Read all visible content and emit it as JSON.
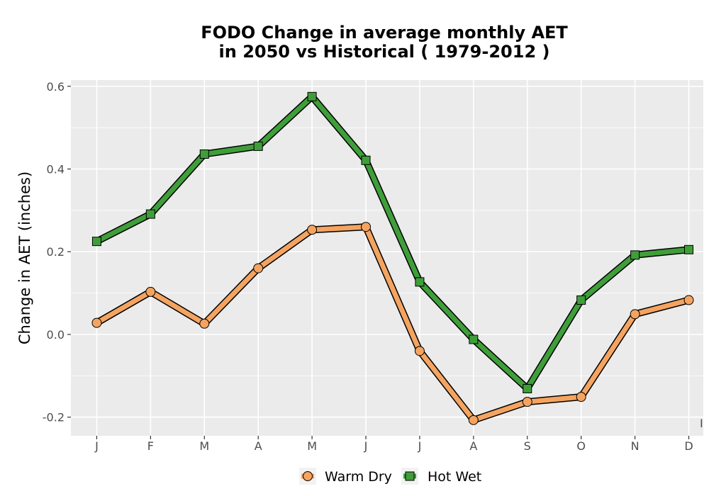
{
  "chart_data": {
    "type": "line",
    "title_lines": [
      "FODO  Change in average monthly AET",
      "in 2050 vs Historical ( 1979-2012 )"
    ],
    "xlabel": "",
    "ylabel": "Change in AET (inches)",
    "categories": [
      "J",
      "F",
      "M",
      "A",
      "M",
      "J",
      "J",
      "A",
      "S",
      "O",
      "N",
      "D"
    ],
    "ylim": [
      -0.245,
      0.615
    ],
    "y_ticks": [
      -0.2,
      0.0,
      0.2,
      0.4,
      0.6
    ],
    "y_tick_labels": [
      "-0.2",
      "0.0",
      "0.2",
      "0.4",
      "0.6"
    ],
    "grid": true,
    "legend_position": "bottom",
    "series": [
      {
        "name": "Warm Dry",
        "marker": "circle",
        "color": "#F4A460",
        "values": [
          0.028,
          0.103,
          0.026,
          0.16,
          0.253,
          0.26,
          -0.04,
          -0.207,
          -0.163,
          -0.151,
          0.049,
          0.083
        ]
      },
      {
        "name": "Hot Wet",
        "marker": "square",
        "color": "#3F9E3A",
        "values": [
          0.225,
          0.291,
          0.436,
          0.455,
          0.575,
          0.421,
          0.127,
          -0.012,
          -0.131,
          0.083,
          0.192,
          0.205
        ]
      }
    ],
    "stray_mark": "I",
    "panel_background": "#EBEBEB",
    "gridline_color": "#FFFFFF"
  }
}
